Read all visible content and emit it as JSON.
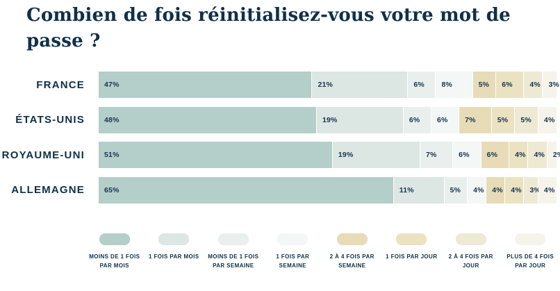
{
  "title": "Combien de fois réinitialisez-vous votre mot de passe ?",
  "colors": {
    "background": "#ffffff",
    "text": "#0f3049",
    "value_text": "#16334d"
  },
  "chart_data": {
    "type": "bar",
    "variant": "stacked",
    "orientation": "horizontal",
    "title": "Combien de fois réinitialisez-vous votre mot de passe ?",
    "value_suffix": "%",
    "legend_position": "bottom",
    "categories": [
      "FRANCE",
      "ÉTATS-UNIS",
      "ROYAUME-UNI",
      "ALLEMAGNE"
    ],
    "series": [
      {
        "name": "MOINS DE 1 FOIS PAR MOIS",
        "color": "#b4cec9",
        "values": [
          47,
          48,
          51,
          65
        ]
      },
      {
        "name": "1 FOIS PAR MOIS",
        "color": "#dce6e2",
        "values": [
          21,
          19,
          19,
          11
        ]
      },
      {
        "name": "MOINS DE 1 FOIS PAR SEMAINE",
        "color": "#e9efec",
        "values": [
          6,
          6,
          7,
          5
        ]
      },
      {
        "name": "1 FOIS PAR SEMAINE",
        "color": "#f3f7f5",
        "values": [
          8,
          6,
          6,
          4
        ]
      },
      {
        "name": "2 À 4 FOIS PAR SEMAINE",
        "color": "#e7dcb7",
        "values": [
          5,
          7,
          6,
          4
        ]
      },
      {
        "name": "1 FOIS PAR JOUR",
        "color": "#ebe2c1",
        "values": [
          6,
          5,
          4,
          4
        ]
      },
      {
        "name": "2 À 4 FOIS PAR JOUR",
        "color": "#eee9d3",
        "values": [
          4,
          5,
          4,
          3
        ]
      },
      {
        "name": "PLUS DE 4 FOIS PAR JOUR",
        "color": "#f6f4ea",
        "values": [
          3,
          4,
          2,
          4
        ]
      }
    ]
  }
}
